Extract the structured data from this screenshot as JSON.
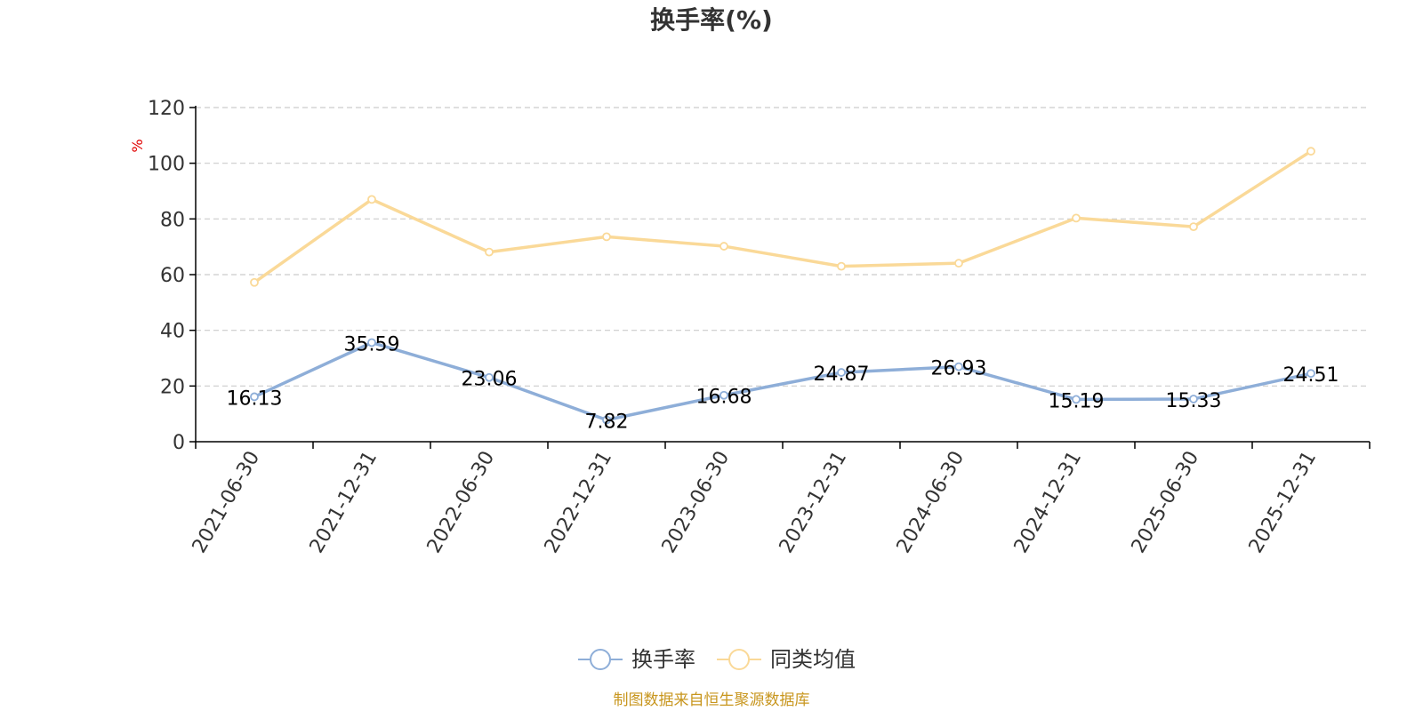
{
  "chart_data": {
    "type": "line",
    "title": "换手率(%)",
    "ylabel": "%",
    "ylim": [
      0,
      120
    ],
    "yticks": [
      "0",
      "20",
      "40",
      "60",
      "80",
      "100",
      "120"
    ],
    "grid": true,
    "legend_position": "bottom-center",
    "categories": [
      "2021-06-30",
      "2021-12-31",
      "2022-06-30",
      "2022-12-31",
      "2023-06-30",
      "2023-12-31",
      "2024-06-30",
      "2024-12-31",
      "2025-06-30",
      "2025-12-31"
    ],
    "series": [
      {
        "name": "换手率",
        "color": "#8eaed8",
        "values": [
          16.13,
          35.59,
          23.06,
          7.82,
          16.68,
          24.87,
          26.93,
          15.19,
          15.33,
          24.51
        ],
        "labels": [
          "16.13",
          "35.59",
          "23.06",
          "7.82",
          "16.68",
          "24.87",
          "26.93",
          "15.19",
          "15.33",
          "24.51"
        ],
        "show_labels": true
      },
      {
        "name": "同类均值",
        "color": "#fad998",
        "values": [
          57.2,
          87.0,
          68.1,
          73.6,
          70.2,
          63.0,
          64.1,
          80.3,
          77.2,
          104.3
        ],
        "show_labels": false
      }
    ],
    "source": "制图数据来自恒生聚源数据库"
  },
  "colors": {
    "axis": "#000000",
    "grid": "#cccccc",
    "ylabel": "#e00000",
    "source": "#c8961e"
  }
}
